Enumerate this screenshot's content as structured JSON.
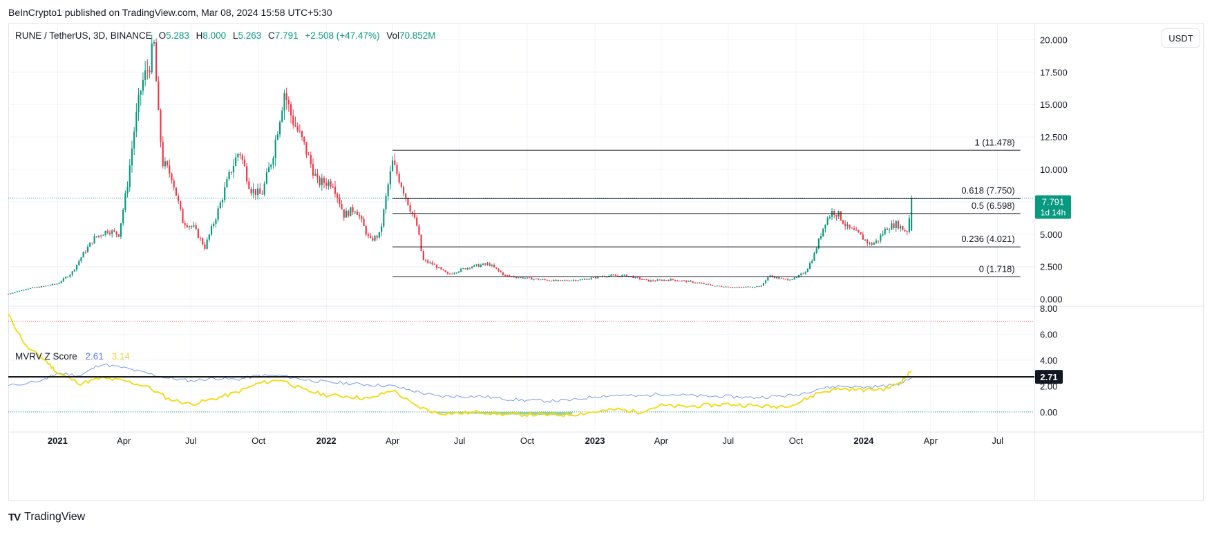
{
  "header": {
    "published": "BeInCrypto1 published on TradingView.com, Mar 08, 2024 15:58 UTC+5:30"
  },
  "legend": {
    "symbol": "RUNE / TetherUS, 3D, BINANCE",
    "o_label": "O",
    "o_value": "5.283",
    "h_label": "H",
    "h_value": "8.000",
    "l_label": "L",
    "l_value": "5.263",
    "c_label": "C",
    "c_value": "7.791",
    "change": "+2.508 (+47.47%)",
    "vol_label": "Vol",
    "vol_value": "70.852M"
  },
  "currency_button": "USDT",
  "indicator_legend": {
    "name": "MVRV Z Score",
    "blue_value": "2.61",
    "yellow_value": "3.14"
  },
  "price_badge": {
    "price": "7.791",
    "countdown": "1d 14h"
  },
  "indicator_badge": "2.71",
  "brand": {
    "name": "TradingView",
    "logo": "TV"
  },
  "colors": {
    "up": "#089981",
    "down": "#f23645",
    "mvrv_blue": "#7b9be6",
    "mvrv_yellow": "#f2dc1e",
    "fill_green": "#81c784",
    "dotted_red": "#f23645",
    "badge_dark": "#131722"
  },
  "chart_data": [
    {
      "type": "candlestick",
      "title": "RUNE / TetherUS, 3D, BINANCE",
      "ylim": [
        -0.5,
        21.3
      ],
      "y_ticks": [
        "20.000",
        "17.500",
        "15.000",
        "12.500",
        "10.000",
        "7.500",
        "5.000",
        "2.500",
        "0.000"
      ],
      "x_ticks": [
        "2021",
        "Apr",
        "Jul",
        "Oct",
        "2022",
        "Apr",
        "Jul",
        "Oct",
        "2023",
        "Apr",
        "Jul",
        "Oct",
        "2024",
        "Apr",
        "Jul"
      ],
      "x_tick_dates": [
        "2021-01-01",
        "2021-04-01",
        "2021-07-01",
        "2021-10-01",
        "2022-01-01",
        "2022-04-01",
        "2022-07-01",
        "2022-10-01",
        "2023-01-01",
        "2023-04-01",
        "2023-07-01",
        "2023-10-01",
        "2024-01-01",
        "2024-04-01",
        "2024-07-01"
      ],
      "x_range": [
        "2020-10-26",
        "2024-08-20"
      ],
      "close_price_points": [
        [
          "2020-10-26",
          0.4
        ],
        [
          "2020-11-20",
          0.8
        ],
        [
          "2020-12-15",
          1.0
        ],
        [
          "2021-01-01",
          1.2
        ],
        [
          "2021-01-20",
          2.0
        ],
        [
          "2021-02-05",
          3.5
        ],
        [
          "2021-02-20",
          4.7
        ],
        [
          "2021-03-10",
          5.3
        ],
        [
          "2021-03-25",
          5.0
        ],
        [
          "2021-04-05",
          8.5
        ],
        [
          "2021-04-15",
          13.0
        ],
        [
          "2021-04-25",
          16.5
        ],
        [
          "2021-05-05",
          18.0
        ],
        [
          "2021-05-12",
          19.5
        ],
        [
          "2021-05-18",
          14.0
        ],
        [
          "2021-05-24",
          10.5
        ],
        [
          "2021-06-05",
          9.5
        ],
        [
          "2021-06-20",
          6.0
        ],
        [
          "2021-07-05",
          5.5
        ],
        [
          "2021-07-20",
          4.0
        ],
        [
          "2021-08-05",
          6.5
        ],
        [
          "2021-08-25",
          10.0
        ],
        [
          "2021-09-05",
          11.5
        ],
        [
          "2021-09-20",
          8.5
        ],
        [
          "2021-10-05",
          8.0
        ],
        [
          "2021-10-20",
          11.0
        ],
        [
          "2021-11-05",
          16.0
        ],
        [
          "2021-11-15",
          14.0
        ],
        [
          "2021-12-01",
          12.0
        ],
        [
          "2021-12-20",
          9.0
        ],
        [
          "2022-01-10",
          9.0
        ],
        [
          "2022-01-25",
          6.5
        ],
        [
          "2022-02-10",
          7.0
        ],
        [
          "2022-03-01",
          4.5
        ],
        [
          "2022-03-15",
          5.0
        ],
        [
          "2022-03-25",
          8.5
        ],
        [
          "2022-04-01",
          10.5
        ],
        [
          "2022-04-12",
          9.0
        ],
        [
          "2022-04-25",
          7.0
        ],
        [
          "2022-05-05",
          5.5
        ],
        [
          "2022-05-12",
          3.0
        ],
        [
          "2022-05-25",
          2.7
        ],
        [
          "2022-06-15",
          1.9
        ],
        [
          "2022-07-15",
          2.5
        ],
        [
          "2022-08-10",
          2.7
        ],
        [
          "2022-09-01",
          1.8
        ],
        [
          "2022-10-01",
          1.6
        ],
        [
          "2022-11-10",
          1.4
        ],
        [
          "2022-12-15",
          1.5
        ],
        [
          "2023-01-15",
          1.8
        ],
        [
          "2023-02-15",
          1.8
        ],
        [
          "2023-03-15",
          1.4
        ],
        [
          "2023-04-15",
          1.5
        ],
        [
          "2023-05-15",
          1.3
        ],
        [
          "2023-06-15",
          1.0
        ],
        [
          "2023-07-15",
          0.9
        ],
        [
          "2023-08-15",
          1.0
        ],
        [
          "2023-08-25",
          1.8
        ],
        [
          "2023-09-15",
          1.5
        ],
        [
          "2023-10-01",
          1.6
        ],
        [
          "2023-10-15",
          2.2
        ],
        [
          "2023-10-25",
          3.3
        ],
        [
          "2023-11-01",
          4.5
        ],
        [
          "2023-11-10",
          6.0
        ],
        [
          "2023-11-20",
          6.8
        ],
        [
          "2023-11-28",
          6.5
        ],
        [
          "2023-12-10",
          5.5
        ],
        [
          "2023-12-25",
          5.0
        ],
        [
          "2024-01-10",
          4.2
        ],
        [
          "2024-01-20",
          4.5
        ],
        [
          "2024-02-01",
          5.5
        ],
        [
          "2024-02-15",
          5.8
        ],
        [
          "2024-02-25",
          5.3
        ],
        [
          "2024-03-01",
          5.283
        ],
        [
          "2024-03-06",
          7.791
        ]
      ],
      "last_candle": {
        "open": 5.283,
        "high": 8.0,
        "low": 5.263,
        "close": 7.791
      }
    },
    {
      "type": "line",
      "title": "Fibonacci retracement",
      "start_date": "2022-04-01",
      "end_date": "2024-08-01",
      "levels": [
        {
          "label": "1 (11.478)",
          "value": 11.478
        },
        {
          "label": "0.618 (7.750)",
          "value": 7.75
        },
        {
          "label": "0.5 (6.598)",
          "value": 6.598
        },
        {
          "label": "0.236 (4.021)",
          "value": 4.021
        },
        {
          "label": "0 (1.718)",
          "value": 1.718
        }
      ]
    },
    {
      "type": "line",
      "title": "MVRV Z Score",
      "ylim": [
        -1.5,
        8.1
      ],
      "y_ticks": [
        "8.00",
        "6.00",
        "4.00",
        "2.00",
        "0.00"
      ],
      "threshold": 2.71,
      "upper_dotted": 7.0,
      "series": [
        {
          "name": "2.61",
          "points": [
            [
              "2020-10-26",
              2.0
            ],
            [
              "2020-12-15",
              2.5
            ],
            [
              "2021-01-01",
              3.0
            ],
            [
              "2021-02-01",
              2.8
            ],
            [
              "2021-03-01",
              3.7
            ],
            [
              "2021-04-01",
              3.4
            ],
            [
              "2021-05-01",
              3.0
            ],
            [
              "2021-06-01",
              2.6
            ],
            [
              "2021-07-01",
              2.4
            ],
            [
              "2021-08-01",
              2.6
            ],
            [
              "2021-09-01",
              2.5
            ],
            [
              "2021-10-01",
              2.8
            ],
            [
              "2021-11-01",
              2.8
            ],
            [
              "2021-12-01",
              2.5
            ],
            [
              "2022-01-01",
              2.3
            ],
            [
              "2022-02-01",
              2.2
            ],
            [
              "2022-03-01",
              2.1
            ],
            [
              "2022-04-01",
              2.0
            ],
            [
              "2022-05-01",
              1.6
            ],
            [
              "2022-06-01",
              1.2
            ],
            [
              "2022-07-01",
              1.2
            ],
            [
              "2022-08-01",
              1.2
            ],
            [
              "2022-09-01",
              1.0
            ],
            [
              "2022-10-01",
              0.9
            ],
            [
              "2022-11-01",
              0.85
            ],
            [
              "2022-12-01",
              0.9
            ],
            [
              "2023-01-01",
              1.2
            ],
            [
              "2023-02-01",
              1.3
            ],
            [
              "2023-03-01",
              1.2
            ],
            [
              "2023-04-01",
              1.4
            ],
            [
              "2023-05-01",
              1.3
            ],
            [
              "2023-06-01",
              1.2
            ],
            [
              "2023-07-01",
              1.2
            ],
            [
              "2023-08-01",
              1.1
            ],
            [
              "2023-09-01",
              1.2
            ],
            [
              "2023-10-01",
              1.3
            ],
            [
              "2023-11-01",
              1.8
            ],
            [
              "2023-12-01",
              2.0
            ],
            [
              "2024-01-01",
              1.9
            ],
            [
              "2024-02-01",
              2.0
            ],
            [
              "2024-02-20",
              2.2
            ],
            [
              "2024-03-06",
              2.61
            ]
          ]
        },
        {
          "name": "3.14",
          "points": [
            [
              "2020-10-26",
              7.5
            ],
            [
              "2020-11-20",
              5.0
            ],
            [
              "2020-12-15",
              4.0
            ],
            [
              "2021-01-01",
              3.0
            ],
            [
              "2021-02-01",
              2.2
            ],
            [
              "2021-03-01",
              2.6
            ],
            [
              "2021-04-01",
              2.4
            ],
            [
              "2021-05-01",
              2.0
            ],
            [
              "2021-06-01",
              1.0
            ],
            [
              "2021-07-01",
              0.6
            ],
            [
              "2021-08-01",
              1.0
            ],
            [
              "2021-09-01",
              1.5
            ],
            [
              "2021-10-01",
              2.2
            ],
            [
              "2021-11-01",
              2.5
            ],
            [
              "2021-12-01",
              1.7
            ],
            [
              "2022-01-01",
              1.3
            ],
            [
              "2022-02-01",
              1.2
            ],
            [
              "2022-03-01",
              1.0
            ],
            [
              "2022-04-01",
              1.7
            ],
            [
              "2022-05-01",
              0.5
            ],
            [
              "2022-06-01",
              -0.1
            ],
            [
              "2022-07-01",
              -0.1
            ],
            [
              "2022-08-01",
              0.0
            ],
            [
              "2022-09-01",
              -0.2
            ],
            [
              "2022-10-01",
              -0.2
            ],
            [
              "2022-11-01",
              -0.25
            ],
            [
              "2022-12-01",
              -0.2
            ],
            [
              "2023-01-01",
              0.0
            ],
            [
              "2023-02-01",
              0.2
            ],
            [
              "2023-03-01",
              0.0
            ],
            [
              "2023-04-01",
              0.5
            ],
            [
              "2023-05-01",
              0.4
            ],
            [
              "2023-06-01",
              0.5
            ],
            [
              "2023-07-01",
              0.6
            ],
            [
              "2023-08-01",
              0.5
            ],
            [
              "2023-09-01",
              0.4
            ],
            [
              "2023-10-01",
              0.6
            ],
            [
              "2023-11-01",
              1.5
            ],
            [
              "2023-12-01",
              1.8
            ],
            [
              "2024-01-01",
              1.7
            ],
            [
              "2024-02-01",
              1.8
            ],
            [
              "2024-02-20",
              2.3
            ],
            [
              "2024-03-06",
              3.14
            ]
          ]
        }
      ]
    }
  ]
}
